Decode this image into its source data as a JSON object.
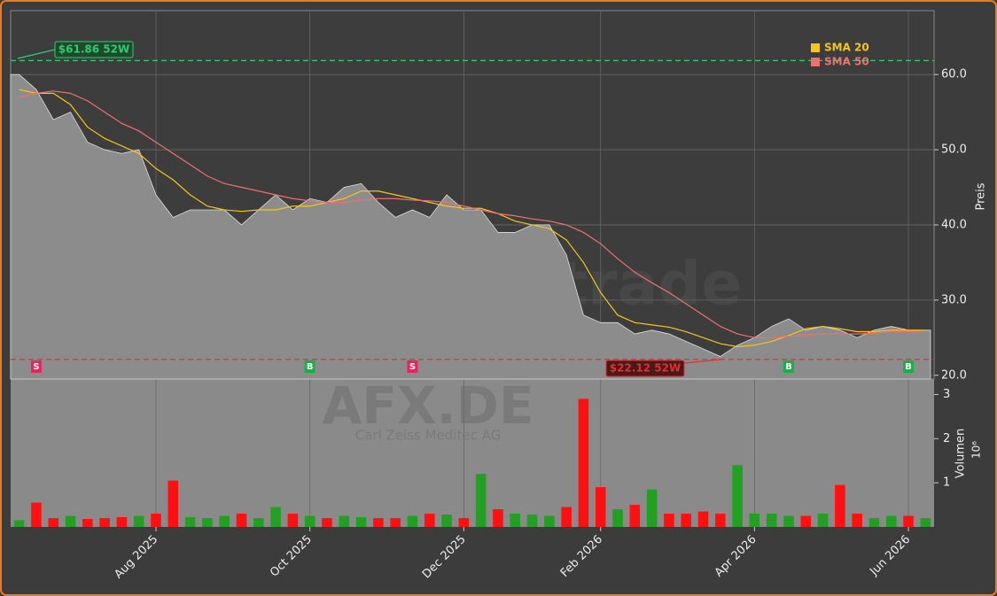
{
  "chart_data": {
    "type": "line",
    "watermark": "forexsignale.trade",
    "symbol": "AFX.DE",
    "company": "Carl Zeiss Meditec AG",
    "ylabel": "Preis",
    "y2label": "Volumen",
    "y2scale": "10⁶",
    "categories": [
      null,
      null,
      null,
      null,
      null,
      null,
      null,
      null,
      "Aug 2025",
      null,
      null,
      null,
      null,
      null,
      null,
      null,
      null,
      "Oct 2025",
      null,
      null,
      null,
      null,
      null,
      null,
      null,
      null,
      "Dec 2025",
      null,
      null,
      null,
      null,
      null,
      null,
      null,
      "Feb 2026",
      null,
      null,
      null,
      null,
      null,
      null,
      null,
      null,
      "Apr 2026",
      null,
      null,
      null,
      null,
      null,
      null,
      null,
      null,
      "Jun 2026",
      null
    ],
    "ylim": [
      19.5,
      68.5
    ],
    "yticks": [
      {
        "value": 20,
        "label": "20.0"
      },
      {
        "value": 30,
        "label": "30.0"
      },
      {
        "value": 40,
        "label": "40.0"
      },
      {
        "value": 50,
        "label": "50.0"
      },
      {
        "value": 60,
        "label": "60.0"
      }
    ],
    "y2lim": [
      0,
      3.35
    ],
    "y2ticks": [
      1,
      2,
      3
    ],
    "grid": true,
    "legend": "upper right",
    "series": [
      {
        "type": "area",
        "color": "#8c8c8c",
        "values": [
          60,
          58,
          54,
          55,
          51,
          50,
          49.5,
          50,
          44,
          41,
          42,
          42,
          42,
          40,
          42,
          44,
          42,
          43.5,
          43,
          45,
          45.5,
          43,
          41,
          42,
          41,
          44,
          42,
          42,
          39,
          39,
          40,
          40,
          36,
          28,
          27,
          27,
          25.5,
          26,
          25.5,
          24.5,
          23.5,
          22.5,
          24,
          25,
          26.5,
          27.5,
          26,
          26.5,
          26,
          25,
          26,
          26.5,
          26,
          26
        ]
      },
      {
        "name": "SMA 20",
        "type": "line",
        "color": "#f5c518",
        "values": [
          58,
          57.5,
          57.5,
          56,
          53,
          51.5,
          50.5,
          49.5,
          47.5,
          46,
          44,
          42.5,
          42,
          41.8,
          42,
          42,
          42.5,
          42.5,
          43,
          43.5,
          44.5,
          44.5,
          44,
          43.5,
          43,
          42.5,
          42.2,
          42.2,
          41.5,
          40.5,
          40,
          39.5,
          38,
          35,
          31,
          28,
          27,
          26.7,
          26.4,
          25.8,
          25,
          24.2,
          23.8,
          24,
          24.5,
          25.3,
          26.2,
          26.5,
          26.2,
          25.8,
          25.8,
          26,
          26,
          26
        ]
      },
      {
        "name": "SMA 50",
        "type": "line",
        "color": "#f07070",
        "values": [
          57,
          57.5,
          57.8,
          57.5,
          56.5,
          55,
          53.5,
          52.5,
          51,
          49.5,
          48,
          46.5,
          45.5,
          45,
          44.5,
          44,
          43.5,
          43.2,
          43,
          43,
          43.3,
          43.5,
          43.5,
          43.3,
          43.2,
          43,
          42.5,
          42,
          41.5,
          41.2,
          40.8,
          40.5,
          40,
          39,
          37.5,
          35.5,
          33.7,
          32.3,
          31,
          29.5,
          28,
          26.5,
          25.5,
          25,
          25,
          25.2,
          25.3,
          25.5,
          25.5,
          25.5,
          25.6,
          25.8,
          25.8,
          25.9
        ]
      },
      {
        "type": "bar",
        "axis": "y2",
        "up_color": "#22a022",
        "down_color": "#ff1010",
        "values": [
          0.15,
          0.55,
          0.2,
          0.25,
          0.18,
          0.2,
          0.22,
          0.25,
          0.3,
          1.05,
          0.22,
          0.2,
          0.25,
          0.3,
          0.2,
          0.45,
          0.3,
          0.25,
          0.2,
          0.25,
          0.22,
          0.2,
          0.2,
          0.25,
          0.3,
          0.28,
          0.2,
          1.2,
          0.4,
          0.3,
          0.28,
          0.25,
          0.45,
          2.9,
          0.9,
          0.4,
          0.5,
          0.85,
          0.3,
          0.3,
          0.35,
          0.3,
          1.4,
          0.3,
          0.3,
          0.25,
          0.25,
          0.3,
          0.95,
          0.3,
          0.2,
          0.25,
          0.25,
          0.2
        ]
      }
    ],
    "signals": [
      null,
      "S",
      null,
      null,
      null,
      null,
      null,
      null,
      null,
      null,
      null,
      null,
      null,
      null,
      null,
      null,
      null,
      "B",
      null,
      null,
      null,
      null,
      null,
      "S",
      null,
      null,
      null,
      null,
      null,
      null,
      null,
      null,
      null,
      null,
      null,
      null,
      null,
      null,
      null,
      null,
      null,
      null,
      null,
      null,
      null,
      "B",
      null,
      null,
      null,
      null,
      null,
      null,
      "B",
      null
    ],
    "signal_colors": {
      "S": "#e8245a",
      "B": "#19b04a"
    },
    "annotations": [
      {
        "text": "$61.86 52W",
        "value": 61.86,
        "color": "#2ecc71"
      },
      {
        "text": "$22.12 52W",
        "value": 22.12,
        "color": "#e03030"
      }
    ]
  }
}
